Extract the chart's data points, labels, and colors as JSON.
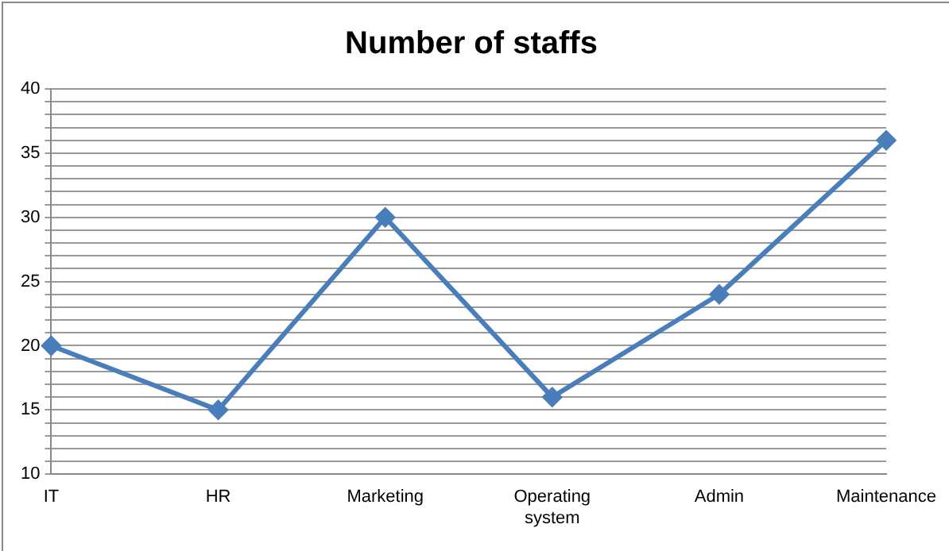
{
  "chart_data": {
    "type": "line",
    "title": "Number of staffs",
    "categories": [
      "IT",
      "HR",
      "Marketing",
      "Operating system",
      "Admin",
      "Maintenance"
    ],
    "series": [
      {
        "color": "#4a7ebb",
        "values": [
          20,
          15,
          30,
          16,
          24,
          36
        ]
      }
    ],
    "ylim": [
      10,
      40
    ],
    "yticks": [
      10,
      {
        "value": 11,
        "label": null
      },
      {
        "value": 12,
        "label": null
      },
      {
        "value": 13,
        "label": null
      },
      {
        "value": 14,
        "label": null
      },
      15,
      {
        "value": 16,
        "label": null
      },
      {
        "value": 17,
        "label": null
      },
      {
        "value": 18,
        "label": null
      },
      {
        "value": 19,
        "label": null
      },
      20,
      {
        "value": 21,
        "label": null
      },
      {
        "value": 22,
        "label": null
      },
      {
        "value": 23,
        "label": null
      },
      {
        "value": 24,
        "label": null
      },
      25,
      {
        "value": 26,
        "label": null
      },
      {
        "value": 27,
        "label": null
      },
      {
        "value": 28,
        "label": null
      },
      {
        "value": 29,
        "label": null
      },
      30,
      {
        "value": 31,
        "label": null
      },
      {
        "value": 32,
        "label": null
      },
      {
        "value": 33,
        "label": null
      },
      {
        "value": 34,
        "label": null
      },
      35,
      {
        "value": 36,
        "label": null
      },
      {
        "value": 37,
        "label": null
      },
      {
        "value": 38,
        "label": null
      },
      {
        "value": 39,
        "label": null
      },
      40
    ],
    "grid": "y",
    "marker": "diamond",
    "line_style": "solid",
    "legend": false
  }
}
